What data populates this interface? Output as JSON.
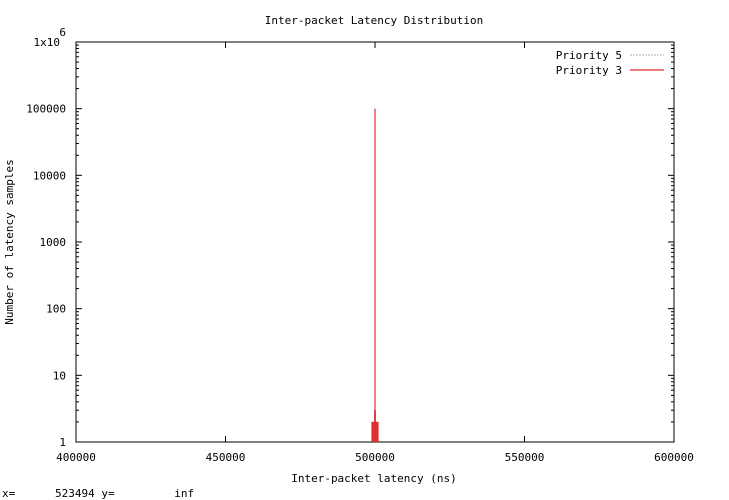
{
  "chart_data": {
    "type": "histogram",
    "title": "Inter-packet Latency Distribution",
    "xlabel": "Inter-packet latency (ns)",
    "ylabel": "Number of latency samples",
    "xlim": [
      400000,
      600000
    ],
    "ylim": [
      1,
      1000000
    ],
    "yscale": "log",
    "grid": false,
    "legend_position": "top-right",
    "x_ticks": [
      {
        "value": 400000,
        "label": "400000"
      },
      {
        "value": 450000,
        "label": "450000"
      },
      {
        "value": 500000,
        "label": "500000"
      },
      {
        "value": 550000,
        "label": "550000"
      },
      {
        "value": 600000,
        "label": "600000"
      }
    ],
    "y_ticks": [
      {
        "value": 1,
        "label": "1"
      },
      {
        "value": 10,
        "label": "10"
      },
      {
        "value": 100,
        "label": "100"
      },
      {
        "value": 1000,
        "label": "1000"
      },
      {
        "value": 10000,
        "label": "10000"
      },
      {
        "value": 100000,
        "label": "100000"
      },
      {
        "value": 1000000,
        "label": "1x10",
        "exp": "6"
      }
    ],
    "series": [
      {
        "name": "Priority 5",
        "color": "#c0c0c0",
        "style": "dashed",
        "points": []
      },
      {
        "name": "Priority 3",
        "color": "#e03030",
        "style": "impulse",
        "points": [
          {
            "x": 499000,
            "y": 2
          },
          {
            "x": 499100,
            "y": 2
          },
          {
            "x": 499200,
            "y": 2
          },
          {
            "x": 499300,
            "y": 2
          },
          {
            "x": 499400,
            "y": 2
          },
          {
            "x": 499500,
            "y": 2
          },
          {
            "x": 499600,
            "y": 2
          },
          {
            "x": 499700,
            "y": 2
          },
          {
            "x": 499800,
            "y": 2
          },
          {
            "x": 499900,
            "y": 3
          },
          {
            "x": 500000,
            "y": 100000
          },
          {
            "x": 500100,
            "y": 3
          },
          {
            "x": 500200,
            "y": 2
          },
          {
            "x": 500300,
            "y": 2
          },
          {
            "x": 500400,
            "y": 2
          },
          {
            "x": 500500,
            "y": 2
          },
          {
            "x": 500600,
            "y": 2
          },
          {
            "x": 500700,
            "y": 2
          },
          {
            "x": 500800,
            "y": 2
          },
          {
            "x": 500900,
            "y": 2
          },
          {
            "x": 501000,
            "y": 2
          }
        ]
      }
    ]
  },
  "status": {
    "x_label": "x=",
    "x_value": "523494",
    "y_label": "y=",
    "y_value": "inf"
  }
}
